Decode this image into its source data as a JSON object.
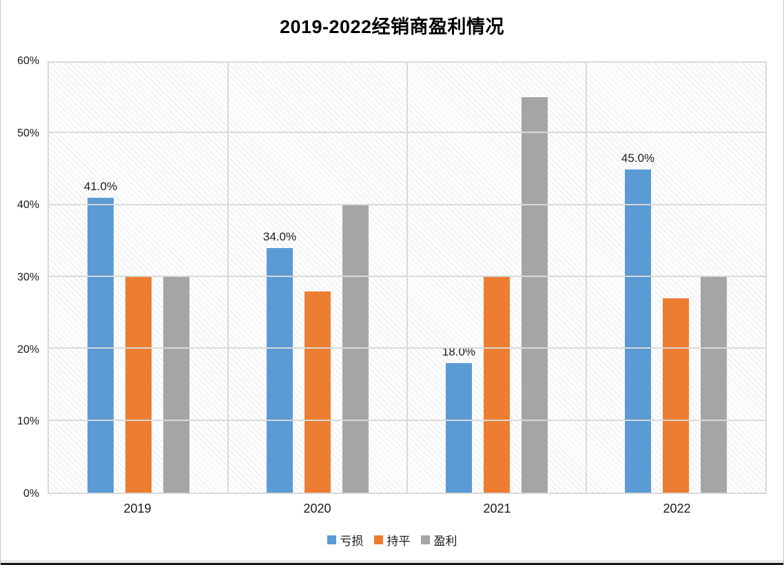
{
  "chart_data": {
    "type": "bar",
    "title": "2019-2022经销商盈利情况",
    "categories": [
      "2019",
      "2020",
      "2021",
      "2022"
    ],
    "series": [
      {
        "name": "亏损",
        "color": "#5B9BD5",
        "values": [
          41,
          34,
          18,
          45
        ],
        "labels": [
          "41.0%",
          "34.0%",
          "18.0%",
          "45.0%"
        ]
      },
      {
        "name": "持平",
        "color": "#ED7D31",
        "values": [
          30,
          28,
          30,
          27
        ]
      },
      {
        "name": "盈利",
        "color": "#A5A5A5",
        "values": [
          30,
          40,
          55,
          30
        ]
      }
    ],
    "ylim": [
      0,
      60
    ],
    "yticks": [
      {
        "v": 0,
        "label": "0%"
      },
      {
        "v": 10,
        "label": "10%"
      },
      {
        "v": 20,
        "label": "20%"
      },
      {
        "v": 30,
        "label": "30%"
      },
      {
        "v": 40,
        "label": "40%"
      },
      {
        "v": 50,
        "label": "50%"
      },
      {
        "v": 60,
        "label": "60%"
      }
    ],
    "grid": true,
    "legend_position": "bottom",
    "value_suffix": "%"
  },
  "colors": {
    "gridline": "#d9d9d9",
    "hatch_line": "#e7e7e7",
    "text": "#1a1a1a"
  }
}
